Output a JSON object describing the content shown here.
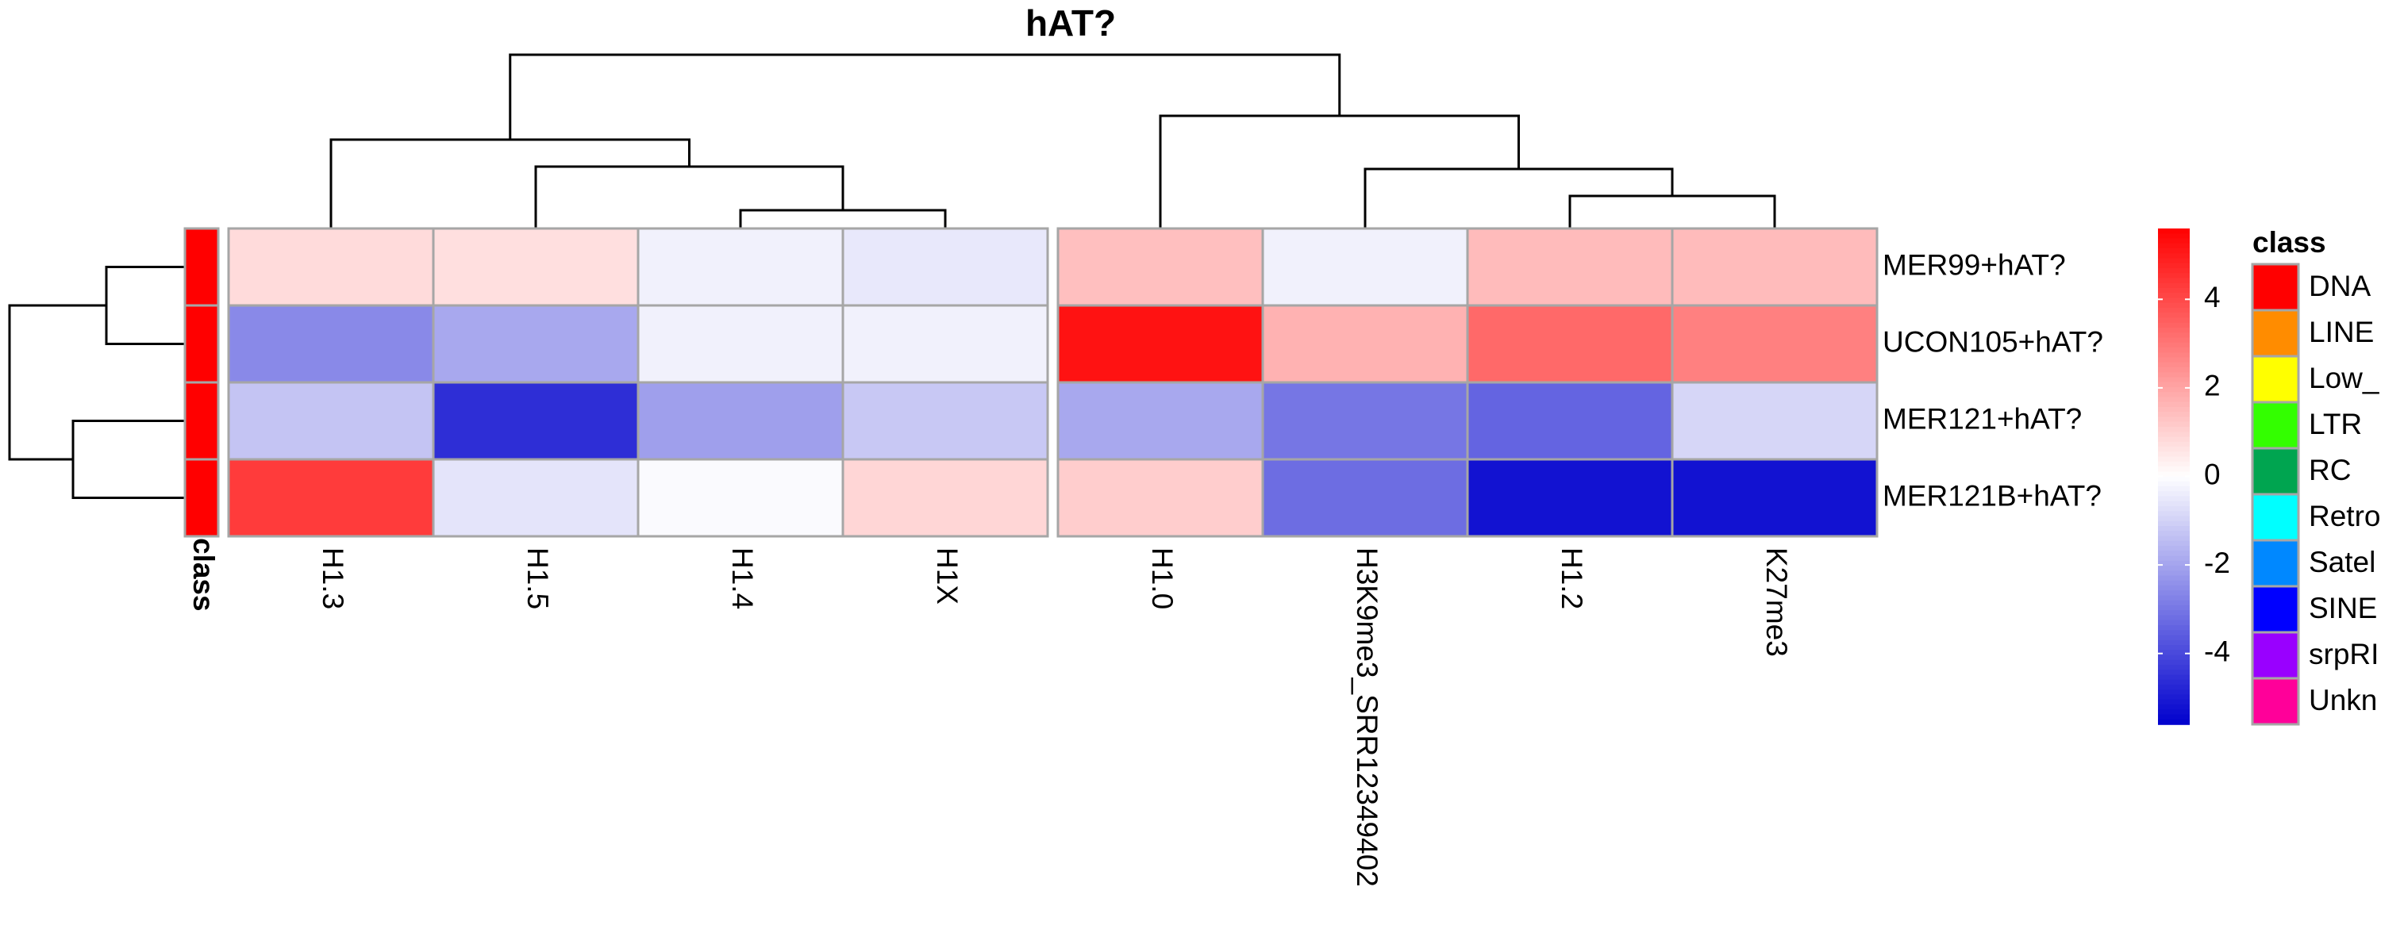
{
  "chart_data": {
    "type": "heatmap",
    "title": "hAT?",
    "rows": [
      "MER99+hAT?",
      "UCON105+hAT?",
      "MER121+hAT?",
      "MER121B+hAT?"
    ],
    "column_groups": [
      [
        "H1.3",
        "H1.5",
        "H1.4",
        "H1X"
      ],
      [
        "H1.0",
        "H3K9me3_SRR12349402",
        "H1.2",
        "K27me3"
      ]
    ],
    "columns": [
      "H1.3",
      "H1.5",
      "H1.4",
      "H1X",
      "H1.0",
      "H3K9me3_SRR12349402",
      "H1.2",
      "K27me3"
    ],
    "values": [
      [
        0.8,
        0.7,
        -0.3,
        -0.5,
        1.4,
        -0.3,
        1.5,
        1.5
      ],
      [
        -2.6,
        -1.9,
        -0.3,
        -0.3,
        5.2,
        1.7,
        3.3,
        2.8
      ],
      [
        -1.3,
        -4.6,
        -2.1,
        -1.2,
        -1.9,
        -3.0,
        -3.4,
        -0.9
      ],
      [
        4.3,
        -0.6,
        -0.1,
        0.9,
        1.1,
        -3.2,
        -5.2,
        -5.2
      ]
    ],
    "color_scale": {
      "min": -5.6,
      "max": 5.6,
      "low_color": "#0000CD",
      "mid_color": "#FFFFFF",
      "high_color": "#FF0000",
      "ticks": [
        4,
        2,
        0,
        -2,
        -4
      ]
    },
    "row_annotation": {
      "name": "class",
      "values": [
        "DNA",
        "DNA",
        "DNA",
        "DNA"
      ]
    },
    "class_legend": {
      "title": "class",
      "items": [
        {
          "label": "DNA",
          "color": "#FF0000"
        },
        {
          "label": "LINE",
          "color": "#FF8C00"
        },
        {
          "label": "Low_",
          "color": "#FFFF00"
        },
        {
          "label": "LTR",
          "color": "#33FF00"
        },
        {
          "label": "RC",
          "color": "#00A550"
        },
        {
          "label": "Retro",
          "color": "#00FFFF"
        },
        {
          "label": "Satel",
          "color": "#0088FF"
        },
        {
          "label": "SINE",
          "color": "#0000FF"
        },
        {
          "label": "srpRI",
          "color": "#9900FF"
        },
        {
          "label": "Unkn",
          "color": "#FF0099"
        }
      ]
    },
    "row_dendrogram": "((MER99+hAT?,UCON105+hAT?),(MER121+hAT?,MER121B+hAT?))",
    "column_dendrogram": "((H1.3,(H1.5,(H1.4,H1X))),(H1.0,(H3K9me3_SRR12349402,(H1.2,K27me3))))"
  }
}
